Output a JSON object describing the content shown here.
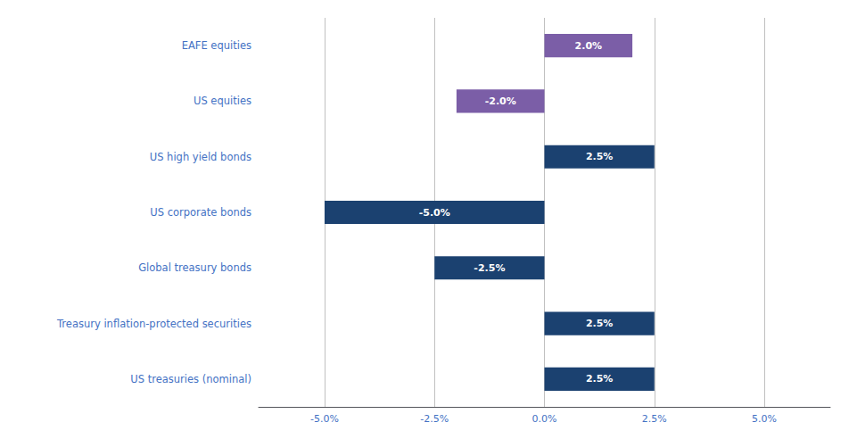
{
  "chart_data": {
    "type": "bar",
    "orientation": "horizontal",
    "categories": [
      "US treasuries (nominal)",
      "Treasury inflation-protected securities",
      "Global treasury bonds",
      "US corporate bonds",
      "US high yield bonds",
      "US equities",
      "EAFE equities"
    ],
    "values": [
      2.5,
      2.5,
      -2.5,
      -5.0,
      2.5,
      -2.0,
      2.0
    ],
    "value_labels": [
      "2.5%",
      "2.5%",
      "-2.5%",
      "-5.0%",
      "2.5%",
      "-2.0%",
      "2.0%"
    ],
    "data_labels": true,
    "colors": [
      "#1b4170",
      "#1b4170",
      "#1b4170",
      "#1b4170",
      "#1b4170",
      "#7b5ea7",
      "#7b5ea7"
    ],
    "xlim": [
      -6.5,
      6.5
    ],
    "xticks": [
      {
        "value": -5.0,
        "label": "-5.0%"
      },
      {
        "value": -2.5,
        "label": "-2.5%"
      },
      {
        "value": 0.0,
        "label": "0.0%"
      },
      {
        "value": 2.5,
        "label": "2.5%"
      },
      {
        "value": 5.0,
        "label": "5.0%"
      }
    ],
    "grid": true
  }
}
